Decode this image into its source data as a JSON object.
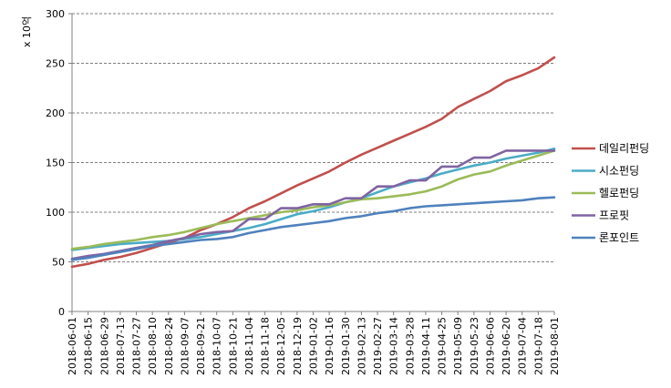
{
  "chart_data": {
    "type": "line",
    "title": "",
    "xlabel": "",
    "ylabel": "x 10억",
    "ylim": [
      0,
      300
    ],
    "yticks": [
      0,
      50,
      100,
      150,
      200,
      250,
      300
    ],
    "grid": true,
    "legend_position": "right",
    "x": [
      "2018-06-01",
      "2018-06-15",
      "2018-06-29",
      "2018-07-13",
      "2018-07-27",
      "2018-08-10",
      "2018-08-24",
      "2018-09-07",
      "2018-09-21",
      "2018-10-07",
      "2018-10-21",
      "2018-11-04",
      "2018-11-18",
      "2018-12-05",
      "2018-12-19",
      "2019-01-02",
      "2019-01-16",
      "2019-01-30",
      "2019-02-13",
      "2019-02-27",
      "2019-03-14",
      "2019-03-28",
      "2019-04-11",
      "2019-04-25",
      "2019-05-09",
      "2019-05-23",
      "2019-06-06",
      "2019-06-20",
      "2019-07-04",
      "2019-07-18",
      "2019-08-01"
    ],
    "series": [
      {
        "name": "데일리펀딩",
        "color": "#c0504d",
        "values": [
          45,
          48,
          52,
          55,
          59,
          64,
          69,
          74,
          82,
          88,
          95,
          104,
          111,
          119,
          127,
          134,
          141,
          150,
          158,
          165,
          172,
          179,
          186,
          194,
          206,
          214,
          222,
          232,
          238,
          245,
          256
        ]
      },
      {
        "name": "시소펀딩",
        "color": "#4bacc6",
        "values": [
          62,
          64,
          66,
          68,
          69,
          70,
          71,
          73,
          75,
          78,
          81,
          84,
          88,
          93,
          98,
          101,
          105,
          110,
          114,
          120,
          126,
          130,
          134,
          139,
          143,
          147,
          150,
          154,
          157,
          160,
          164
        ]
      },
      {
        "name": "헬로펀딩",
        "color": "#9bbb59",
        "values": [
          63,
          65,
          68,
          70,
          72,
          75,
          77,
          80,
          84,
          88,
          91,
          94,
          97,
          100,
          102,
          105,
          107,
          110,
          113,
          114,
          116,
          118,
          121,
          126,
          133,
          138,
          141,
          147,
          152,
          157,
          162
        ]
      },
      {
        "name": "프로핏",
        "color": "#8064a2",
        "values": [
          53,
          56,
          58,
          61,
          64,
          67,
          71,
          74,
          78,
          80,
          81,
          93,
          93,
          104,
          104,
          108,
          108,
          114,
          114,
          126,
          126,
          132,
          132,
          146,
          146,
          155,
          155,
          162,
          162,
          162,
          162
        ]
      },
      {
        "name": "론포인트",
        "color": "#4f81bd",
        "values": [
          52,
          54,
          57,
          60,
          63,
          66,
          68,
          70,
          72,
          73,
          75,
          79,
          82,
          85,
          87,
          89,
          91,
          94,
          96,
          99,
          101,
          104,
          106,
          107,
          108,
          109,
          110,
          111,
          112,
          114,
          115
        ]
      }
    ]
  }
}
